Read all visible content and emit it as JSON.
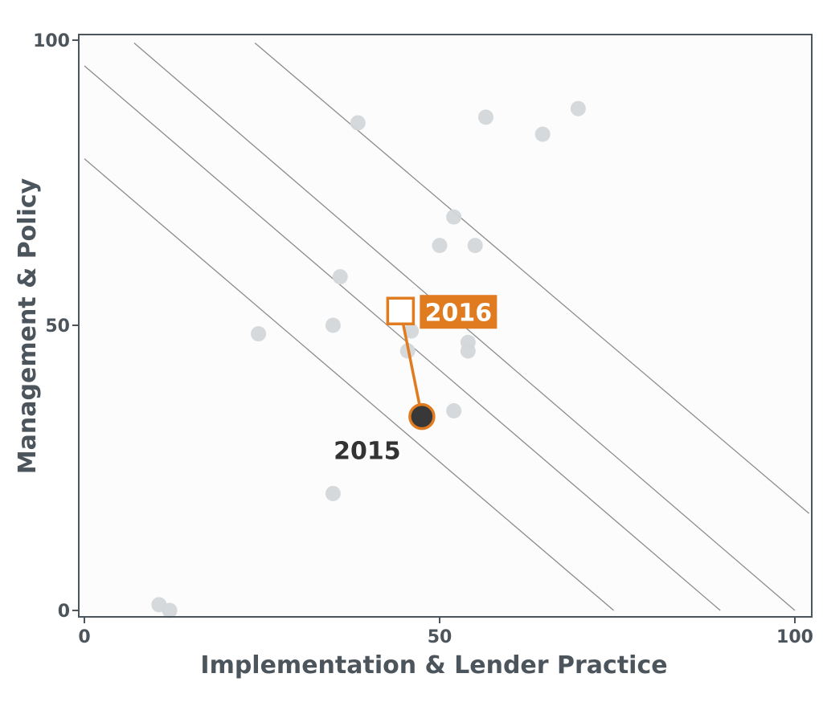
{
  "chart_data": {
    "type": "scatter",
    "xlabel": "Implementation & Lender Practice",
    "ylabel": "Management & Policy",
    "xlim": [
      0,
      100
    ],
    "ylim": [
      0,
      100
    ],
    "xticks": [
      "0",
      "50",
      "100"
    ],
    "yticks": [
      "0",
      "50",
      "100"
    ],
    "grid": false,
    "reference_lines": [
      {
        "x1": 0,
        "y1": 79.2,
        "x2": 74.5,
        "y2": 0
      },
      {
        "x1": 0,
        "y1": 95.5,
        "x2": 89.5,
        "y2": 0
      },
      {
        "x1": 7,
        "y1": 99.5,
        "x2": 100,
        "y2": 0
      },
      {
        "x1": 24,
        "y1": 99.5,
        "x2": 102,
        "y2": 17
      }
    ],
    "series": [
      {
        "values": [
          {
            "x": 10.5,
            "y": 1
          },
          {
            "x": 12,
            "y": 0
          },
          {
            "x": 24.5,
            "y": 48.5
          },
          {
            "x": 35,
            "y": 50
          },
          {
            "x": 35,
            "y": 20.5
          },
          {
            "x": 36,
            "y": 58.5
          },
          {
            "x": 38.5,
            "y": 85.5
          },
          {
            "x": 45.5,
            "y": 45.5
          },
          {
            "x": 46,
            "y": 49
          },
          {
            "x": 50,
            "y": 64
          },
          {
            "x": 52,
            "y": 69
          },
          {
            "x": 52,
            "y": 35
          },
          {
            "x": 54,
            "y": 47
          },
          {
            "x": 54,
            "y": 45.5
          },
          {
            "x": 55,
            "y": 64
          },
          {
            "x": 56.5,
            "y": 86.5
          },
          {
            "x": 64.5,
            "y": 83.5
          },
          {
            "x": 69.5,
            "y": 88
          }
        ],
        "color": "#d4d7d9"
      }
    ],
    "highlight": {
      "color": "#e07b1f",
      "from": {
        "label": "2015",
        "x": 47.5,
        "y": 34,
        "marker": "filled-circle",
        "fill": "#383838"
      },
      "to": {
        "label": "2016",
        "x": 44.5,
        "y": 52.5,
        "marker": "open-square",
        "fill": "#ffffff"
      }
    }
  }
}
